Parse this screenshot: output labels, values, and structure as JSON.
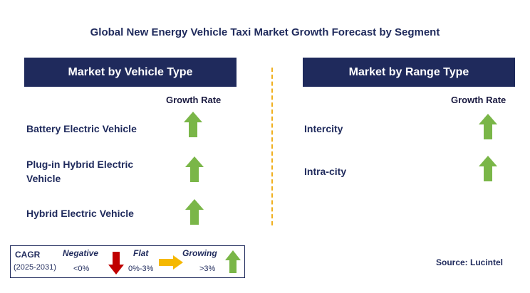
{
  "title": "Global New Energy Vehicle Taxi Market Growth Forecast by Segment",
  "left_panel": {
    "header": "Market by Vehicle Type",
    "growth_label": "Growth Rate",
    "rows": [
      {
        "line1": "Battery Electric Vehicle",
        "line2": "",
        "trend": "growing"
      },
      {
        "line1": "Plug-in Hybrid Electric",
        "line2": "Vehicle",
        "trend": "growing"
      },
      {
        "line1": "Hybrid Electric Vehicle",
        "line2": "",
        "trend": "growing"
      }
    ]
  },
  "right_panel": {
    "header": "Market by Range Type",
    "growth_label": "Growth Rate",
    "rows": [
      {
        "line1": "Intercity",
        "trend": "growing"
      },
      {
        "line1": "Intra-city",
        "trend": "growing"
      }
    ]
  },
  "legend": {
    "cagr": "CAGR",
    "years": "(2025-2031)",
    "negative_label": "Negative",
    "negative_value": "<0%",
    "flat_label": "Flat",
    "flat_value": "0%-3%",
    "growing_label": "Growing",
    "growing_value": ">3%"
  },
  "source": "Source: Lucintel",
  "colors": {
    "navy": "#1f2a5c",
    "growing": "#7ab648",
    "negative": "#c00000",
    "flat": "#f5b800",
    "divider": "#f0b020"
  }
}
